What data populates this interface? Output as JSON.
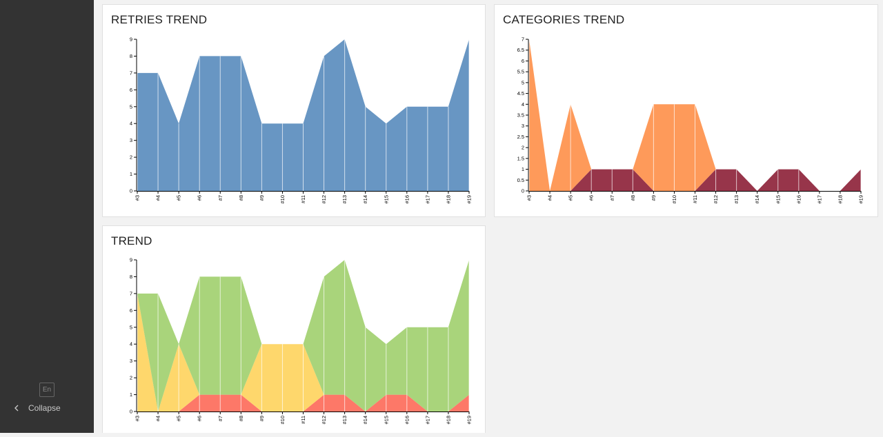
{
  "sidebar": {
    "lang_label": "En",
    "collapse_label": "Collapse"
  },
  "cards": [
    {
      "title": "RETRIES TREND"
    },
    {
      "title": "CATEGORIES TREND"
    },
    {
      "title": "TREND"
    }
  ],
  "chart_data": [
    {
      "type": "area",
      "title": "RETRIES TREND",
      "x": [
        "#3",
        "#4",
        "#5",
        "#6",
        "#7",
        "#8",
        "#9",
        "#10",
        "#11",
        "#12",
        "#13",
        "#14",
        "#15",
        "#16",
        "#17",
        "#18",
        "#19"
      ],
      "yticks": [
        "0",
        "1",
        "2",
        "3",
        "4",
        "5",
        "6",
        "7",
        "8",
        "9"
      ],
      "ylim": [
        0,
        9
      ],
      "stacked": true,
      "series": [
        {
          "color": "#6896c3",
          "values": [
            7,
            7,
            4,
            8,
            8,
            8,
            4,
            4,
            4,
            8,
            9,
            5,
            4,
            5,
            5,
            5,
            9
          ]
        }
      ]
    },
    {
      "type": "area",
      "title": "CATEGORIES TREND",
      "x": [
        "#3",
        "#4",
        "#5",
        "#6",
        "#7",
        "#8",
        "#9",
        "#10",
        "#11",
        "#12",
        "#13",
        "#14",
        "#15",
        "#16",
        "#17",
        "#18",
        "#19"
      ],
      "yticks": [
        "0",
        "0.5",
        "1",
        "1.5",
        "2",
        "2.5",
        "3",
        "3.5",
        "4",
        "4.5",
        "5",
        "5.5",
        "6",
        "6.5",
        "7"
      ],
      "ylim": [
        0,
        7
      ],
      "stacked": true,
      "series": [
        {
          "color": "#97354a",
          "values": [
            0,
            0,
            0,
            1,
            1,
            1,
            0,
            0,
            0,
            1,
            1,
            0,
            1,
            1,
            0,
            0,
            1
          ]
        },
        {
          "color": "#fe9a5a",
          "values": [
            7,
            0,
            4,
            0,
            0,
            0,
            4,
            4,
            4,
            0,
            0,
            0,
            0,
            0,
            0,
            0,
            0
          ]
        }
      ]
    },
    {
      "type": "area",
      "title": "TREND",
      "x": [
        "#3",
        "#4",
        "#5",
        "#6",
        "#7",
        "#8",
        "#9",
        "#10",
        "#11",
        "#12",
        "#13",
        "#14",
        "#15",
        "#16",
        "#17",
        "#18",
        "#19"
      ],
      "yticks": [
        "0",
        "1",
        "2",
        "3",
        "4",
        "5",
        "6",
        "7",
        "8",
        "9"
      ],
      "ylim": [
        0,
        9
      ],
      "stacked": true,
      "series": [
        {
          "color": "#fd7868",
          "values": [
            0,
            0,
            0,
            1,
            1,
            1,
            0,
            0,
            0,
            1,
            1,
            0,
            1,
            1,
            0,
            0,
            1
          ]
        },
        {
          "color": "#fed76c",
          "values": [
            7,
            0,
            4,
            0,
            0,
            0,
            4,
            4,
            4,
            0,
            0,
            0,
            0,
            0,
            0,
            0,
            0
          ]
        },
        {
          "color": "#a9d47b",
          "values": [
            0,
            7,
            0,
            7,
            7,
            7,
            0,
            0,
            0,
            7,
            8,
            5,
            3,
            4,
            5,
            5,
            8
          ]
        }
      ]
    }
  ]
}
